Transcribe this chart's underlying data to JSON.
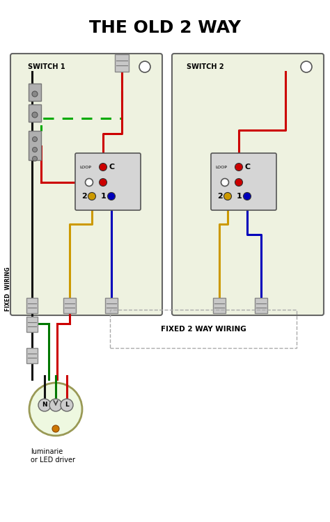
{
  "title": "THE OLD 2 WAY",
  "bg_color": "#ffffff",
  "panel_color": "#eef2e0",
  "panel_border": "#666666",
  "wire_red": "#cc0000",
  "wire_blue": "#0000bb",
  "wire_yellow": "#cc9900",
  "wire_black": "#111111",
  "wire_green": "#007700",
  "wire_green_dashed": "#00aa00",
  "switch_bg": "#d0d0d0",
  "conn_color": "#c0c0c0",
  "conn_border": "#888888",
  "lum_fill": "#eef8e0",
  "lum_border": "#999955",
  "fixed_wiring_label": "FIXED  WIRING",
  "fixed_2way_label": "FIXED 2 WAY WIRING",
  "luminarie_label": "luminarie\nor LED driver",
  "switch1_label": "SWITCH 1",
  "switch2_label": "SWITCH 2"
}
